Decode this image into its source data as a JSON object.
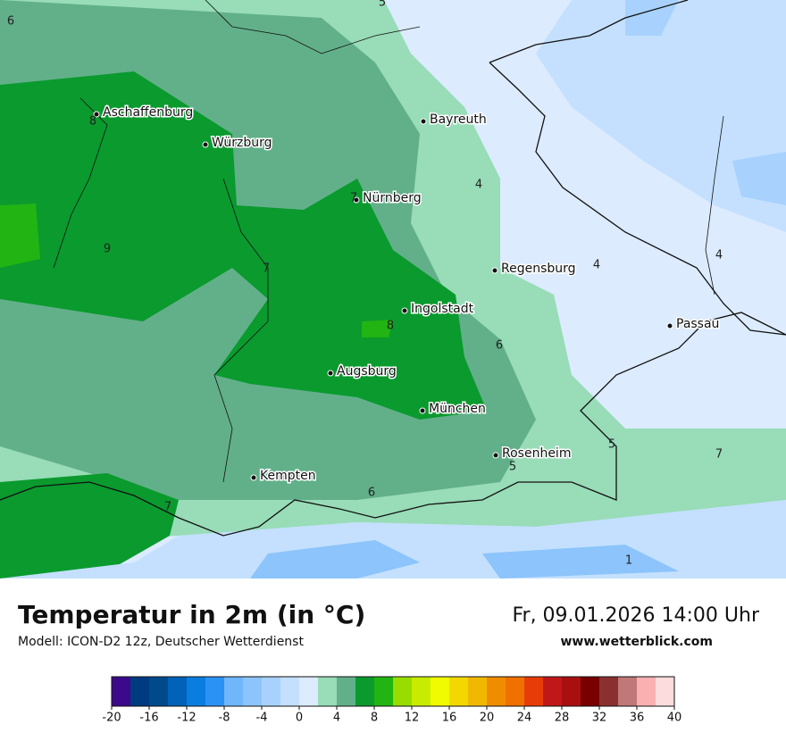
{
  "map": {
    "cities": [
      "Aschaffenburg",
      "Würzburg",
      "Bayreuth",
      "Nürnberg",
      "Regensburg",
      "Ingolstadt",
      "Passau",
      "Augsburg",
      "München",
      "Rosenheim",
      "Kempten"
    ],
    "contour_labels": [
      "5",
      "6",
      "8",
      "4",
      "7",
      "9",
      "7",
      "4",
      "4",
      "8",
      "6",
      "5",
      "5",
      "7",
      "6",
      "7",
      "1"
    ]
  },
  "footer": {
    "title": "Temperatur in 2m (in °C)",
    "model": "Modell: ICON-D2 12z, Deutscher Wetterdienst",
    "datetime": "Fr, 09.01.2026 14:00 Uhr",
    "website": "www.wetterblick.com"
  },
  "colorbar": {
    "range": [
      -20,
      40
    ],
    "ticks": [
      -20,
      -16,
      -12,
      -8,
      -4,
      0,
      4,
      8,
      12,
      16,
      20,
      24,
      28,
      32,
      36,
      40
    ],
    "colors": [
      "#3a0a8a",
      "#003a80",
      "#004a8c",
      "#0062b8",
      "#0a7ee0",
      "#2a92f5",
      "#70b6fb",
      "#8cc4fb",
      "#a8d2fd",
      "#c4e0fe",
      "#dcebfe",
      "#98dcb8",
      "#62b08a",
      "#0a9a2e",
      "#22b412",
      "#98dc00",
      "#c8ec00",
      "#f0fa00",
      "#f2d800",
      "#f0b800",
      "#ef8c00",
      "#f07000",
      "#e83c08",
      "#c01818",
      "#a81010",
      "#780000",
      "#8a3030",
      "#c07878",
      "#fab0b0",
      "#fcdcdc"
    ]
  }
}
